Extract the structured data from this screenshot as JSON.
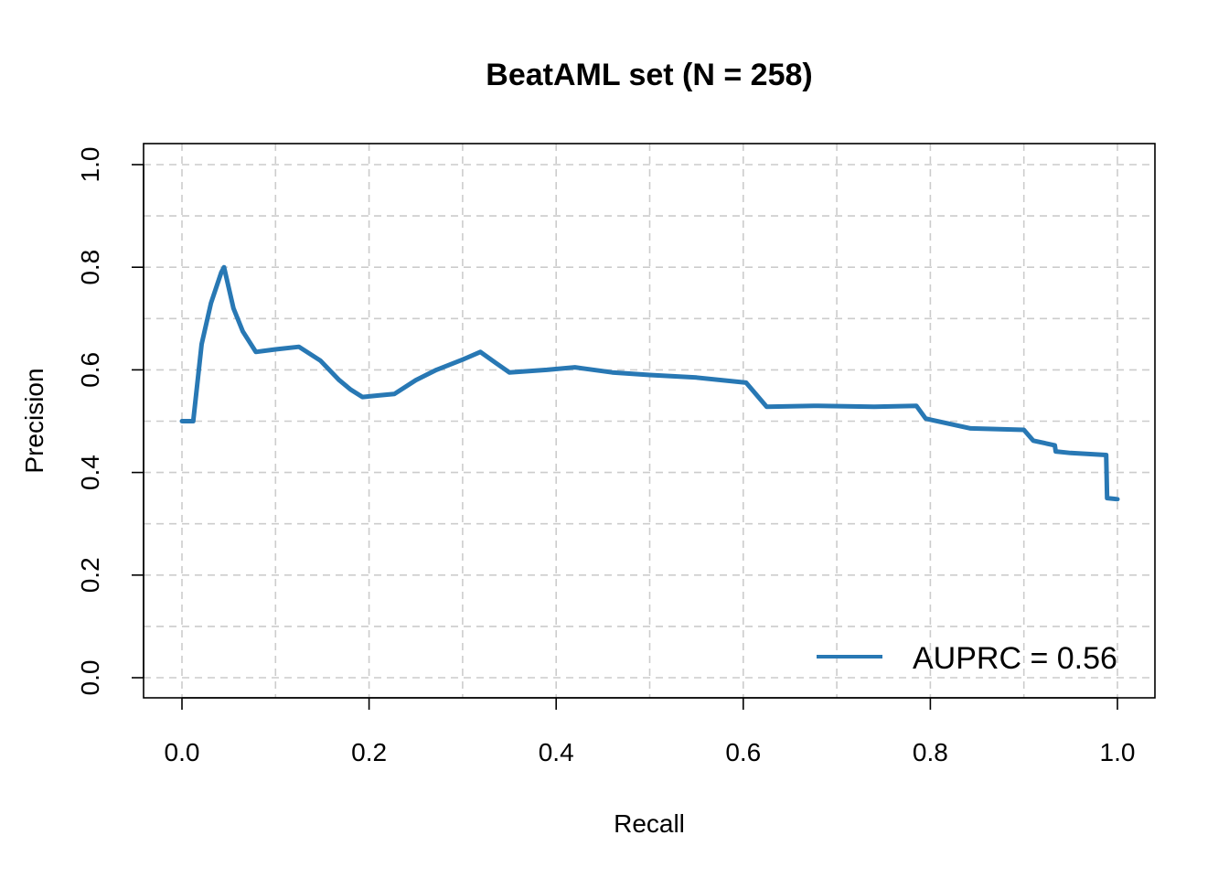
{
  "chart_data": {
    "type": "line",
    "title": "BeatAML set (N = 258)",
    "xlabel": "Recall",
    "ylabel": "Precision",
    "xlim": [
      0.0,
      1.0
    ],
    "ylim": [
      0.0,
      1.0
    ],
    "x_ticks": [
      "0.0",
      "0.2",
      "0.4",
      "0.6",
      "0.8",
      "1.0"
    ],
    "y_ticks": [
      "0.0",
      "0.2",
      "0.4",
      "0.6",
      "0.8",
      "1.0"
    ],
    "grid": true,
    "legend_position": "bottom-right",
    "series": [
      {
        "name": "AUPRC = 0.56",
        "color": "#2878b4",
        "x": [
          0.0,
          0.012,
          0.021,
          0.031,
          0.042,
          0.045,
          0.055,
          0.065,
          0.079,
          0.1,
          0.125,
          0.148,
          0.168,
          0.18,
          0.193,
          0.21,
          0.227,
          0.25,
          0.272,
          0.3,
          0.319,
          0.335,
          0.35,
          0.39,
          0.42,
          0.46,
          0.5,
          0.55,
          0.603,
          0.625,
          0.68,
          0.74,
          0.785,
          0.795,
          0.82,
          0.843,
          0.9,
          0.91,
          0.933,
          0.934,
          0.95,
          0.988,
          0.989,
          1.0
        ],
        "y": [
          0.5,
          0.5,
          0.65,
          0.73,
          0.79,
          0.8,
          0.72,
          0.675,
          0.635,
          0.64,
          0.645,
          0.618,
          0.58,
          0.562,
          0.547,
          0.55,
          0.553,
          0.58,
          0.6,
          0.62,
          0.635,
          0.614,
          0.595,
          0.6,
          0.605,
          0.595,
          0.59,
          0.585,
          0.575,
          0.528,
          0.53,
          0.528,
          0.53,
          0.505,
          0.495,
          0.486,
          0.483,
          0.462,
          0.453,
          0.441,
          0.438,
          0.434,
          0.35,
          0.348
        ]
      }
    ]
  }
}
